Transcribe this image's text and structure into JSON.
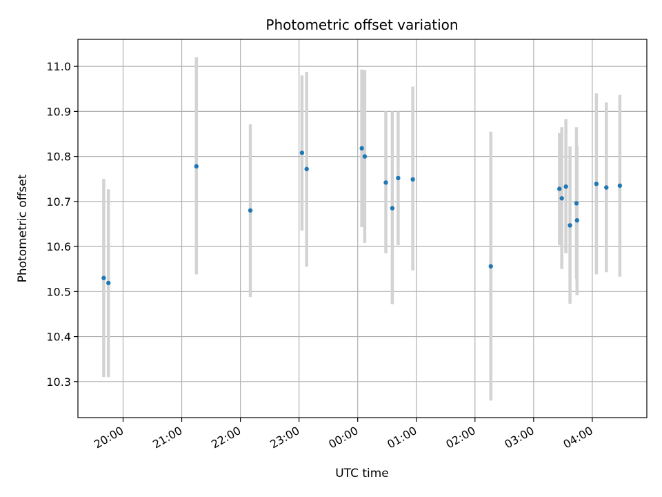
{
  "chart_data": {
    "type": "scatter",
    "title": "Photometric offset variation",
    "xlabel": "UTC time",
    "ylabel": "Photometric offset",
    "x_tick_labels": [
      "20:00",
      "21:00",
      "22:00",
      "23:00",
      "00:00",
      "01:00",
      "02:00",
      "03:00",
      "04:00"
    ],
    "x_ticks_hours": [
      0,
      1,
      2,
      3,
      4,
      5,
      6,
      7,
      8
    ],
    "x_tick_rotation_deg": 30,
    "xlim_hours": [
      -0.77,
      8.93
    ],
    "y_ticks": [
      10.3,
      10.4,
      10.5,
      10.6,
      10.7,
      10.8,
      10.9,
      11.0
    ],
    "y_tick_labels": [
      "10.3",
      "10.4",
      "10.5",
      "10.6",
      "10.7",
      "10.8",
      "10.9",
      "11.0"
    ],
    "ylim": [
      10.22,
      11.06
    ],
    "grid": true,
    "colors": {
      "marker": "#1f77b4",
      "errorbar": "#d3d3d3",
      "grid": "#b0b0b0",
      "axes": "#000000"
    },
    "points": [
      {
        "time": "19:40",
        "x": -0.33,
        "y": 10.53,
        "ylow": 10.31,
        "yhigh": 10.75
      },
      {
        "time": "19:45",
        "x": -0.25,
        "y": 10.519,
        "ylow": 10.31,
        "yhigh": 10.727
      },
      {
        "time": "21:15",
        "x": 1.25,
        "y": 10.778,
        "ylow": 10.538,
        "yhigh": 11.02
      },
      {
        "time": "22:10",
        "x": 2.17,
        "y": 10.68,
        "ylow": 10.488,
        "yhigh": 10.871
      },
      {
        "time": "23:03",
        "x": 3.05,
        "y": 10.808,
        "ylow": 10.635,
        "yhigh": 10.98
      },
      {
        "time": "23:08",
        "x": 3.13,
        "y": 10.772,
        "ylow": 10.555,
        "yhigh": 10.988
      },
      {
        "time": "00:04",
        "x": 4.07,
        "y": 10.818,
        "ylow": 10.643,
        "yhigh": 10.993
      },
      {
        "time": "00:07",
        "x": 4.12,
        "y": 10.8,
        "ylow": 10.608,
        "yhigh": 10.992
      },
      {
        "time": "00:29",
        "x": 4.48,
        "y": 10.742,
        "ylow": 10.585,
        "yhigh": 10.9
      },
      {
        "time": "00:36",
        "x": 4.59,
        "y": 10.685,
        "ylow": 10.472,
        "yhigh": 10.9
      },
      {
        "time": "00:41",
        "x": 4.69,
        "y": 10.752,
        "ylow": 10.603,
        "yhigh": 10.9
      },
      {
        "time": "00:56",
        "x": 4.94,
        "y": 10.749,
        "ylow": 10.547,
        "yhigh": 10.955
      },
      {
        "time": "02:16",
        "x": 6.27,
        "y": 10.556,
        "ylow": 10.258,
        "yhigh": 10.855
      },
      {
        "time": "03:26",
        "x": 7.44,
        "y": 10.728,
        "ylow": 10.603,
        "yhigh": 10.852
      },
      {
        "time": "03:29",
        "x": 7.48,
        "y": 10.707,
        "ylow": 10.55,
        "yhigh": 10.865
      },
      {
        "time": "03:33",
        "x": 7.55,
        "y": 10.733,
        "ylow": 10.585,
        "yhigh": 10.883
      },
      {
        "time": "03:37",
        "x": 7.62,
        "y": 10.647,
        "ylow": 10.473,
        "yhigh": 10.822
      },
      {
        "time": "03:44",
        "x": 7.73,
        "y": 10.696,
        "ylow": 10.528,
        "yhigh": 10.865
      },
      {
        "time": "03:44",
        "x": 7.74,
        "y": 10.658,
        "ylow": 10.492,
        "yhigh": 10.823
      },
      {
        "time": "04:04",
        "x": 8.07,
        "y": 10.739,
        "ylow": 10.538,
        "yhigh": 10.94
      },
      {
        "time": "04:14",
        "x": 8.24,
        "y": 10.731,
        "ylow": 10.543,
        "yhigh": 10.92
      },
      {
        "time": "04:28",
        "x": 8.47,
        "y": 10.735,
        "ylow": 10.533,
        "yhigh": 10.937
      }
    ]
  }
}
